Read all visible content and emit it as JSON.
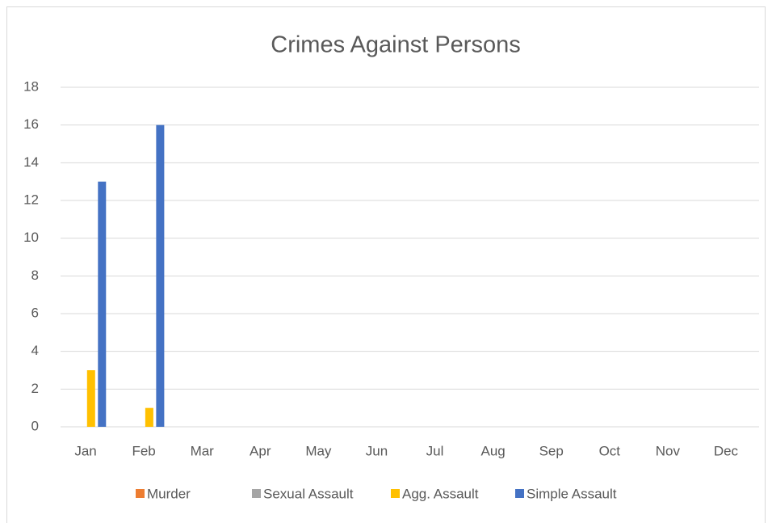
{
  "chart_data": {
    "type": "bar",
    "title": "Crimes Against Persons",
    "categories": [
      "Jan",
      "Feb",
      "Mar",
      "Apr",
      "May",
      "Jun",
      "Jul",
      "Aug",
      "Sep",
      "Oct",
      "Nov",
      "Dec"
    ],
    "series": [
      {
        "name": "Murder",
        "color": "#ed7d31",
        "values": [
          0,
          0,
          null,
          null,
          null,
          null,
          null,
          null,
          null,
          null,
          null,
          null
        ]
      },
      {
        "name": "Sexual Assault",
        "color": "#a5a5a5",
        "values": [
          0,
          0,
          null,
          null,
          null,
          null,
          null,
          null,
          null,
          null,
          null,
          null
        ]
      },
      {
        "name": "Agg. Assault",
        "color": "#ffc000",
        "values": [
          3,
          1,
          null,
          null,
          null,
          null,
          null,
          null,
          null,
          null,
          null,
          null
        ]
      },
      {
        "name": "Simple Assault",
        "color": "#4472c4",
        "values": [
          13,
          16,
          null,
          null,
          null,
          null,
          null,
          null,
          null,
          null,
          null,
          null
        ]
      }
    ],
    "ylim": [
      0,
      18
    ],
    "yticks": [
      0,
      2,
      4,
      6,
      8,
      10,
      12,
      14,
      16,
      18
    ],
    "grid": true,
    "legend": "bottom"
  }
}
